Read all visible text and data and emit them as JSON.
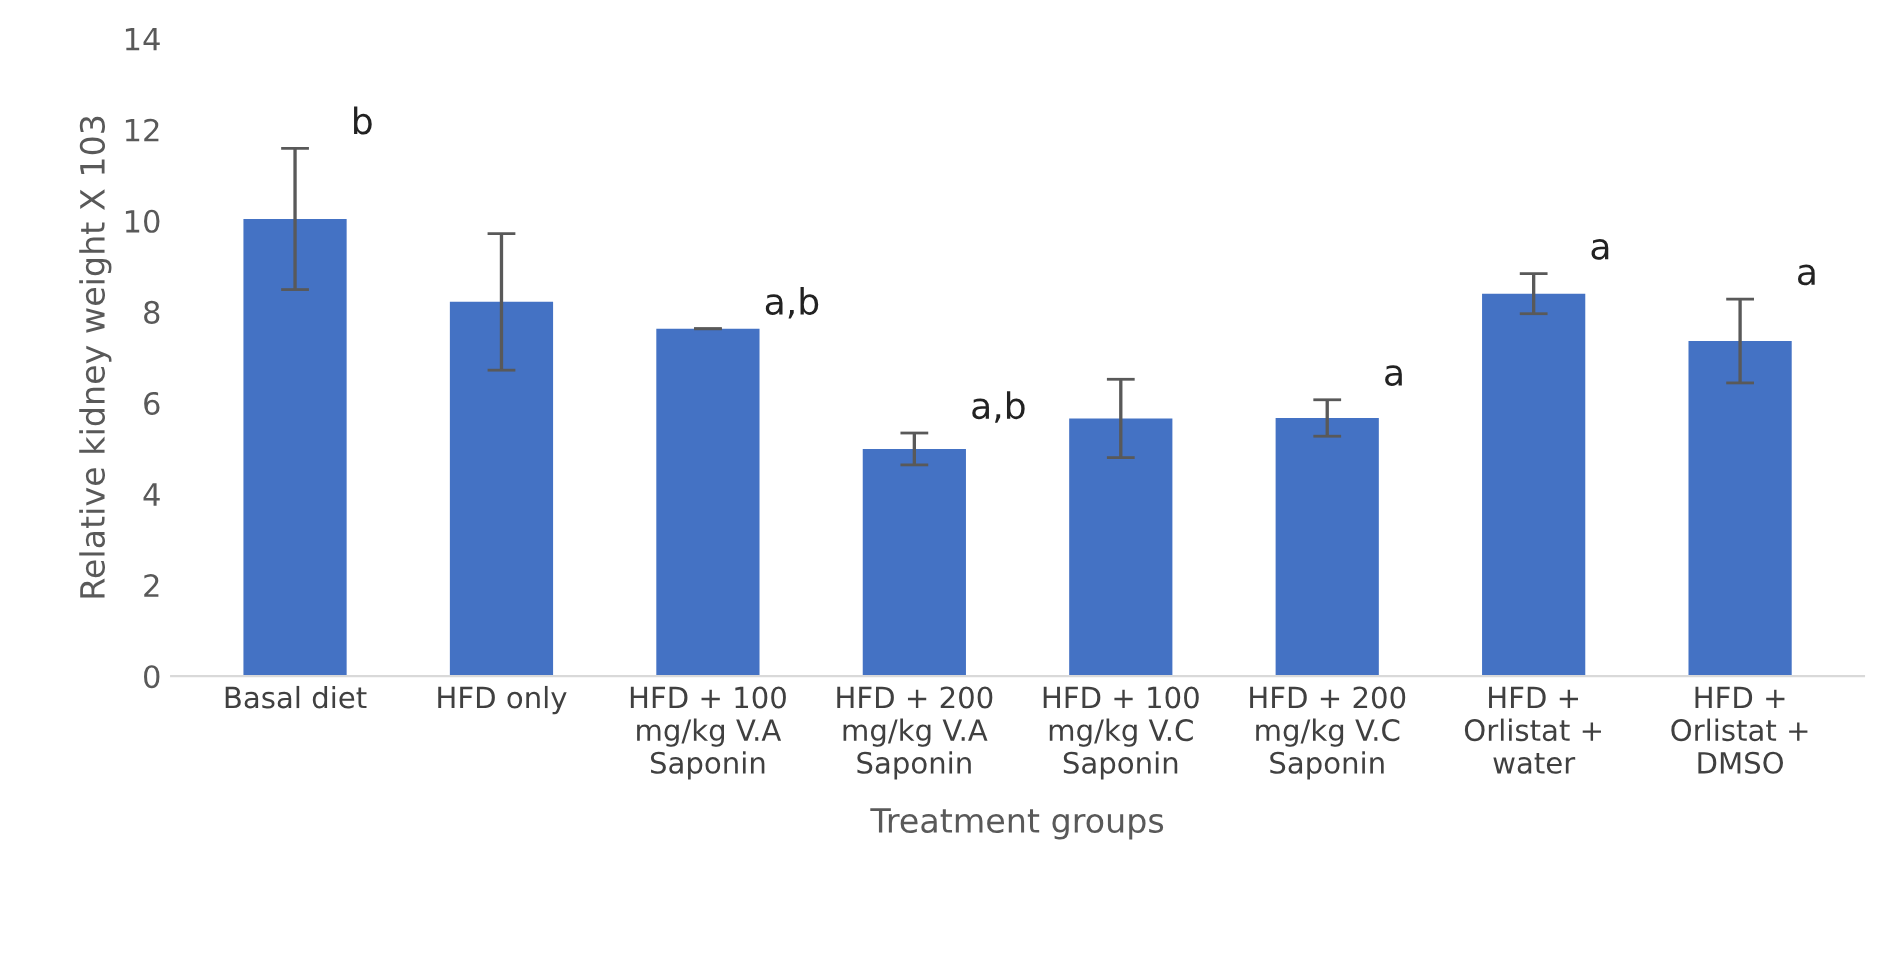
{
  "chart_data": {
    "type": "bar",
    "xlabel": "Treatment groups",
    "ylabel": "Relative kidney weight X 103",
    "categories": [
      "Basal diet",
      "HFD only",
      "HFD + 100\nmg/kg V.A\nSaponin",
      "HFD + 200\nmg/kg V.A\nSaponin",
      "HFD + 100\nmg/kg V.C\nSaponin",
      "HFD + 200\nmg/kg V.C\nSaponin",
      "HFD +\nOrlistat +\nwater",
      "HFD +\nOrlistat +\nDMSO"
    ],
    "values": [
      10.04,
      8.22,
      7.63,
      4.99,
      5.66,
      5.67,
      8.4,
      7.36
    ],
    "errors": [
      1.55,
      1.5,
      null,
      0.35,
      0.86,
      0.4,
      0.44,
      0.92
    ],
    "color": "#4472c4",
    "ylim": [
      0,
      14
    ],
    "yticks": [
      0,
      2,
      4,
      6,
      8,
      10,
      12,
      14
    ],
    "grid": false,
    "value_labels": [
      "b",
      null,
      "a,b",
      "a,b",
      null,
      "a",
      "a",
      "a"
    ]
  }
}
